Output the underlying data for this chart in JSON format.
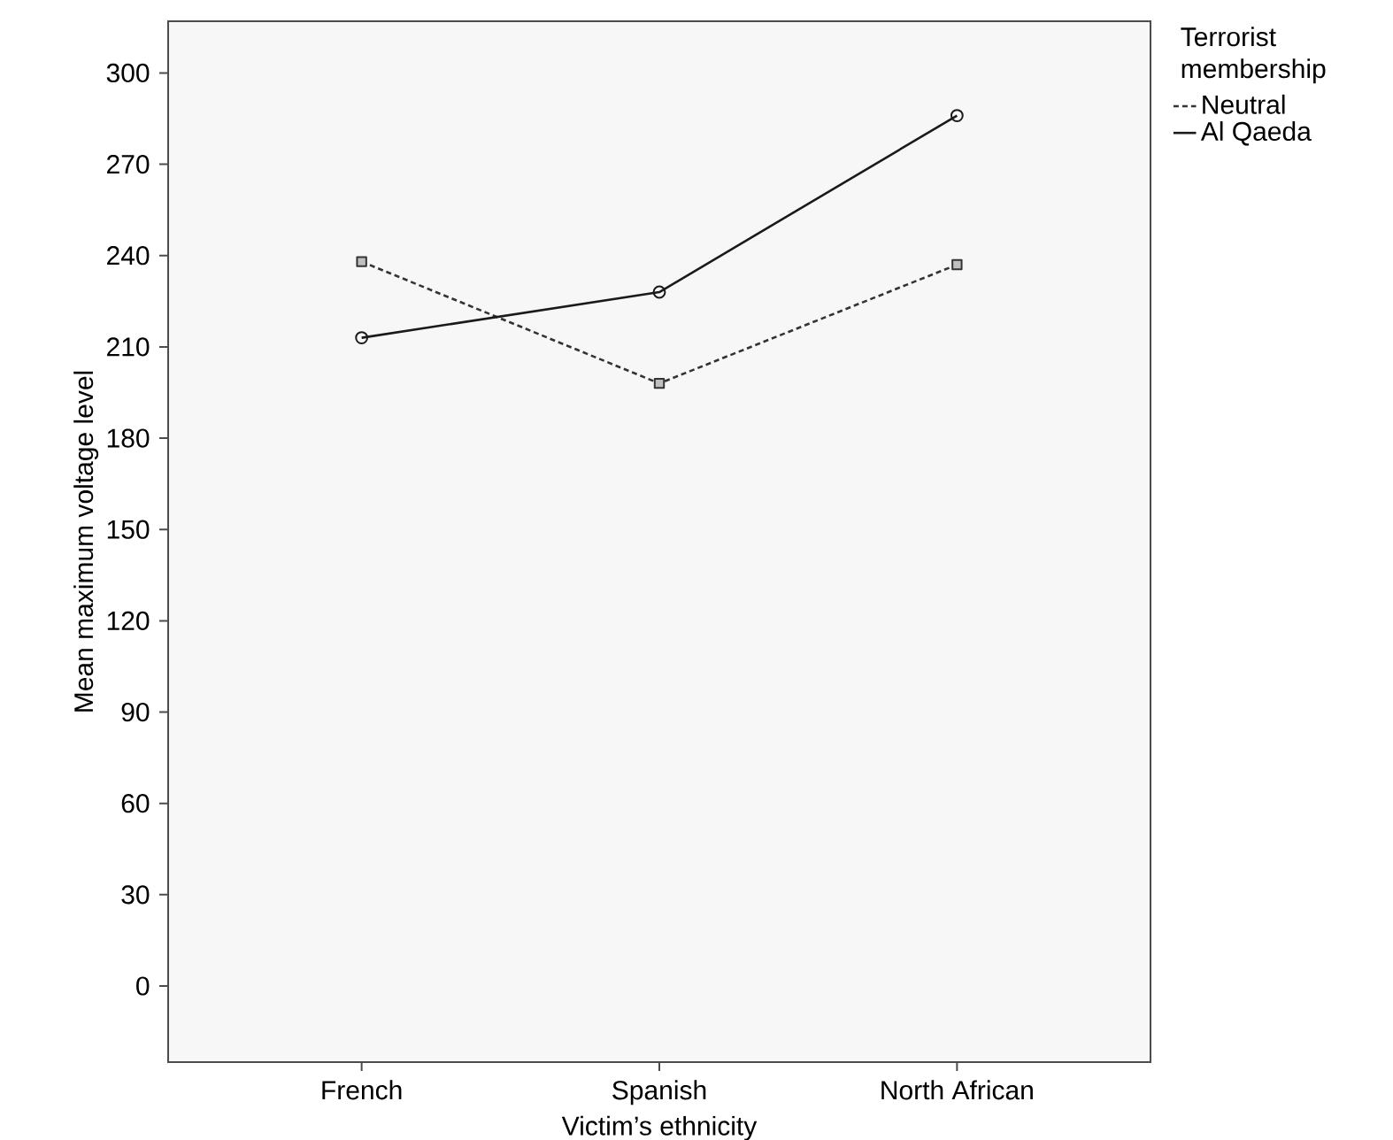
{
  "chart_data": {
    "type": "line",
    "xlabel": "Victim’s ethnicity",
    "ylabel": "Mean maximum voltage level",
    "legend_title": "Terrorist membership",
    "categories": [
      "French",
      "Spanish",
      "North African"
    ],
    "series": [
      {
        "name": "Neutral",
        "color": "#333333",
        "values": [
          238,
          198,
          237
        ],
        "marker": "square",
        "line_style": "dashed"
      },
      {
        "name": "Al Qaeda",
        "color": "#1a1a1a",
        "values": [
          213,
          228,
          286
        ],
        "marker": "circle",
        "line_style": "solid"
      }
    ],
    "ylim": [
      -25,
      317
    ],
    "yticks": [
      0,
      30,
      60,
      90,
      120,
      150,
      180,
      210,
      240,
      270,
      300
    ],
    "grid": false,
    "legend": "right"
  }
}
